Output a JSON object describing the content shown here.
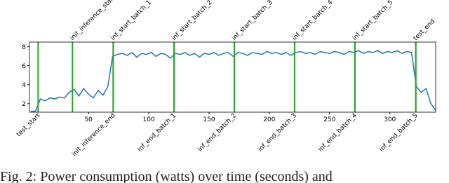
{
  "chart_data": {
    "type": "line",
    "caption": "Fig. 2: Power consumption (watts) over time (seconds) and",
    "xlim": [
      1,
      338
    ],
    "ylim": [
      1.1,
      8.5
    ],
    "xticks": [
      50,
      100,
      150,
      200,
      250,
      300
    ],
    "yticks": [
      2,
      4,
      6,
      8
    ],
    "event_color": "#2ca02c",
    "events": [
      {
        "label": "test_start",
        "x": 8.2,
        "position": "bottom"
      },
      {
        "label": "init_inference_start",
        "x": 36.7,
        "position": "top"
      },
      {
        "label": "inf_start_batch_1",
        "x": 70.5,
        "position": "top"
      },
      {
        "label": "init_inference_end",
        "x": 70.5,
        "position": "bottom"
      },
      {
        "label": "inf_start_batch_2",
        "x": 121,
        "position": "top"
      },
      {
        "label": "inf_end_batch_1",
        "x": 121,
        "position": "bottom"
      },
      {
        "label": "inf_start_batch_3",
        "x": 171,
        "position": "top"
      },
      {
        "label": "inf_end_batch_2",
        "x": 171,
        "position": "bottom"
      },
      {
        "label": "inf_start_batch_4",
        "x": 221,
        "position": "top"
      },
      {
        "label": "inf_end_batch_3",
        "x": 221,
        "position": "bottom"
      },
      {
        "label": "inf_start_batch_5",
        "x": 271,
        "position": "top"
      },
      {
        "label": "inf_end_batch_4",
        "x": 271,
        "position": "bottom"
      },
      {
        "label": "test_end",
        "x": 321.5,
        "position": "top"
      },
      {
        "label": "inf_end_batch_5",
        "x": 321.5,
        "position": "bottom"
      }
    ],
    "color": "#1f77b4",
    "x": [
      2,
      6,
      10,
      14,
      18,
      22,
      26,
      30,
      34,
      38,
      42,
      46,
      50,
      54,
      58,
      62,
      66,
      70,
      74,
      78,
      82,
      86,
      90,
      94,
      98,
      102,
      106,
      110,
      114,
      118,
      122,
      126,
      130,
      134,
      138,
      142,
      146,
      150,
      154,
      158,
      162,
      166,
      170,
      174,
      178,
      182,
      186,
      190,
      194,
      198,
      202,
      206,
      210,
      214,
      218,
      222,
      226,
      230,
      234,
      238,
      242,
      246,
      250,
      254,
      258,
      262,
      266,
      270,
      274,
      278,
      282,
      286,
      290,
      294,
      298,
      302,
      306,
      310,
      314,
      318,
      322,
      326,
      330,
      334,
      338
    ],
    "values": [
      1.2,
      1.2,
      2.5,
      2.3,
      2.6,
      2.5,
      2.7,
      2.6,
      3.2,
      3.5,
      2.8,
      3.6,
      3.0,
      2.6,
      3.4,
      2.9,
      3.8,
      7.0,
      7.2,
      7.3,
      7.1,
      7.4,
      6.9,
      7.3,
      7.2,
      7.4,
      7.0,
      7.3,
      7.2,
      6.8,
      7.3,
      7.2,
      7.4,
      7.1,
      7.3,
      6.9,
      7.3,
      7.2,
      7.4,
      7.1,
      7.3,
      7.4,
      7.0,
      7.4,
      7.3,
      7.1,
      7.4,
      7.3,
      7.2,
      7.5,
      7.3,
      7.4,
      7.2,
      7.4,
      7.1,
      7.4,
      7.5,
      7.3,
      7.4,
      7.2,
      7.5,
      7.4,
      7.3,
      7.5,
      7.4,
      7.2,
      7.5,
      7.4,
      7.6,
      7.3,
      7.5,
      7.4,
      7.6,
      7.3,
      7.5,
      7.4,
      7.6,
      7.3,
      7.5,
      7.4,
      3.8,
      3.2,
      3.6,
      2.0,
      1.3
    ]
  }
}
